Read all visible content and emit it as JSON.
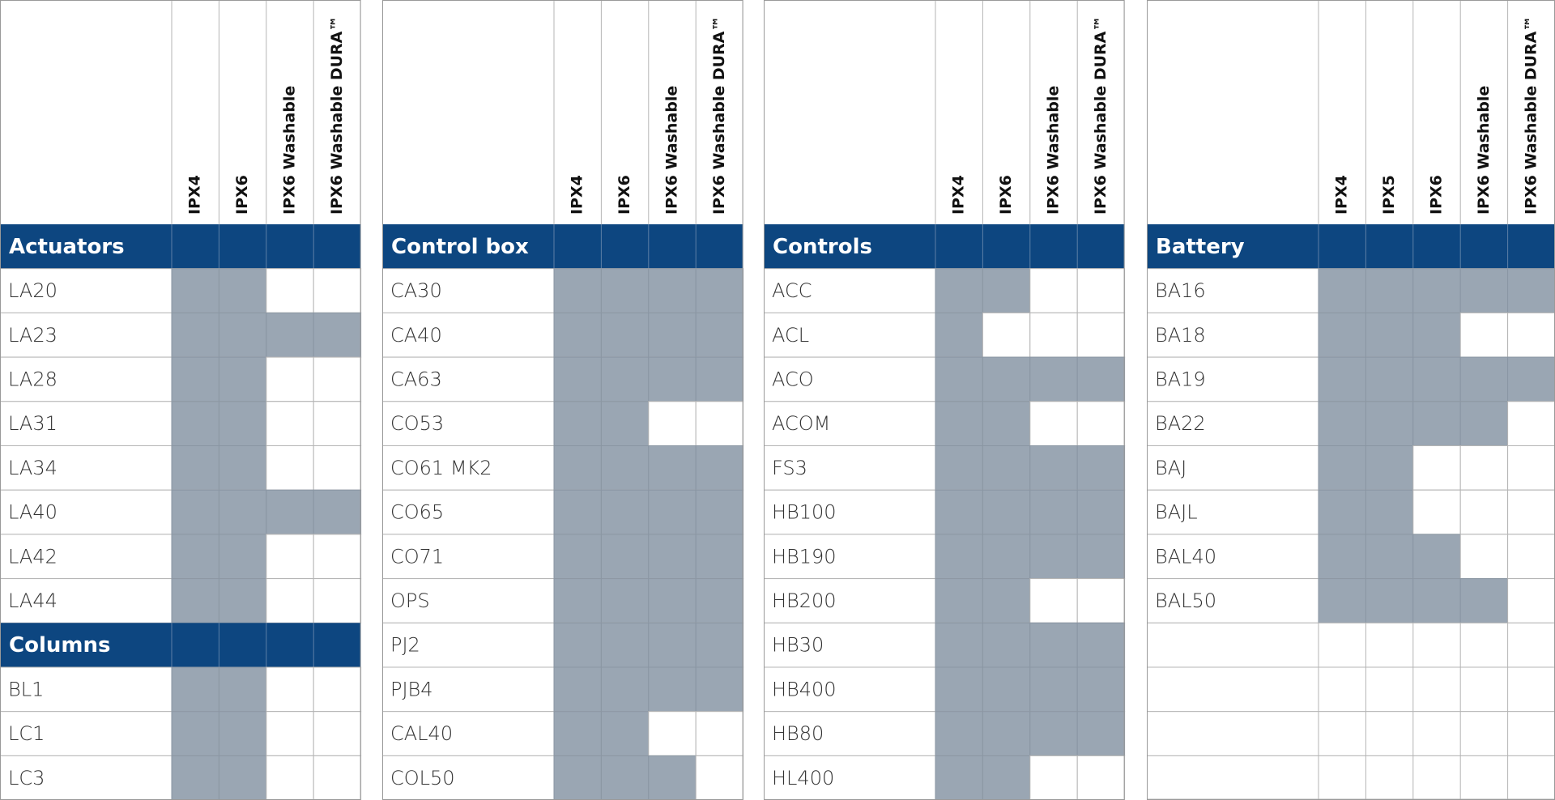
{
  "panels": [
    {
      "columns": [
        "IPX4",
        "IPX6",
        "IPX6 Washable",
        "IPX6 Washable DURA™"
      ],
      "sections": [
        {
          "title": "Actuators",
          "rows": [
            {
              "name": "LA20",
              "marks": [
                true,
                true,
                false,
                false
              ]
            },
            {
              "name": "LA23",
              "marks": [
                true,
                true,
                true,
                true
              ]
            },
            {
              "name": "LA28",
              "marks": [
                true,
                true,
                false,
                false
              ]
            },
            {
              "name": "LA31",
              "marks": [
                true,
                true,
                false,
                false
              ]
            },
            {
              "name": "LA34",
              "marks": [
                true,
                true,
                false,
                false
              ]
            },
            {
              "name": "LA40",
              "marks": [
                true,
                true,
                true,
                true
              ]
            },
            {
              "name": "LA42",
              "marks": [
                true,
                true,
                false,
                false
              ]
            },
            {
              "name": "LA44",
              "marks": [
                true,
                true,
                false,
                false
              ]
            }
          ]
        },
        {
          "title": "Columns",
          "rows": [
            {
              "name": "BL1",
              "marks": [
                true,
                true,
                false,
                false
              ]
            },
            {
              "name": "LC1",
              "marks": [
                true,
                true,
                false,
                false
              ]
            },
            {
              "name": "LC3",
              "marks": [
                true,
                true,
                false,
                false
              ]
            }
          ]
        }
      ]
    },
    {
      "columns": [
        "IPX4",
        "IPX6",
        "IPX6 Washable",
        "IPX6 Washable DURA™"
      ],
      "sections": [
        {
          "title": "Control box",
          "rows": [
            {
              "name": "CA30",
              "marks": [
                true,
                true,
                true,
                true
              ]
            },
            {
              "name": "CA40",
              "marks": [
                true,
                true,
                true,
                true
              ]
            },
            {
              "name": "CA63",
              "marks": [
                true,
                true,
                true,
                true
              ]
            },
            {
              "name": "CO53",
              "marks": [
                true,
                true,
                false,
                false
              ]
            },
            {
              "name": "CO61 MK2",
              "marks": [
                true,
                true,
                true,
                true
              ]
            },
            {
              "name": "CO65",
              "marks": [
                true,
                true,
                true,
                true
              ]
            },
            {
              "name": "CO71",
              "marks": [
                true,
                true,
                true,
                true
              ]
            },
            {
              "name": "OPS",
              "marks": [
                true,
                true,
                true,
                true
              ]
            },
            {
              "name": "PJ2",
              "marks": [
                true,
                true,
                true,
                true
              ]
            },
            {
              "name": "PJB4",
              "marks": [
                true,
                true,
                true,
                true
              ]
            },
            {
              "name": "CAL40",
              "marks": [
                true,
                true,
                false,
                false
              ]
            },
            {
              "name": "COL50",
              "marks": [
                true,
                true,
                true,
                false
              ]
            }
          ]
        }
      ]
    },
    {
      "columns": [
        "IPX4",
        "IPX6",
        "IPX6 Washable",
        "IPX6 Washable DURA™"
      ],
      "sections": [
        {
          "title": "Controls",
          "rows": [
            {
              "name": "ACC",
              "marks": [
                true,
                true,
                false,
                false
              ]
            },
            {
              "name": "ACL",
              "marks": [
                true,
                false,
                false,
                false
              ]
            },
            {
              "name": "ACO",
              "marks": [
                true,
                true,
                true,
                true
              ]
            },
            {
              "name": "ACOM",
              "marks": [
                true,
                true,
                false,
                false
              ]
            },
            {
              "name": "FS3",
              "marks": [
                true,
                true,
                true,
                true
              ]
            },
            {
              "name": "HB100",
              "marks": [
                true,
                true,
                true,
                true
              ]
            },
            {
              "name": "HB190",
              "marks": [
                true,
                true,
                true,
                true
              ]
            },
            {
              "name": "HB200",
              "marks": [
                true,
                true,
                false,
                false
              ]
            },
            {
              "name": "HB30",
              "marks": [
                true,
                true,
                true,
                true
              ]
            },
            {
              "name": "HB400",
              "marks": [
                true,
                true,
                true,
                true
              ]
            },
            {
              "name": "HB80",
              "marks": [
                true,
                true,
                true,
                true
              ]
            },
            {
              "name": "HL400",
              "marks": [
                true,
                true,
                false,
                false
              ]
            }
          ]
        }
      ]
    },
    {
      "columns": [
        "IPX4",
        "IPX5",
        "IPX6",
        "IPX6 Washable",
        "IPX6 Washable DURA™"
      ],
      "sections": [
        {
          "title": "Battery",
          "rows": [
            {
              "name": "BA16",
              "marks": [
                true,
                true,
                true,
                true,
                true
              ]
            },
            {
              "name": "BA18",
              "marks": [
                true,
                true,
                true,
                false,
                false
              ]
            },
            {
              "name": "BA19",
              "marks": [
                true,
                true,
                true,
                true,
                true
              ]
            },
            {
              "name": "BA22",
              "marks": [
                true,
                true,
                true,
                true,
                false
              ]
            },
            {
              "name": "BAJ",
              "marks": [
                true,
                true,
                false,
                false,
                false
              ]
            },
            {
              "name": "BAJL",
              "marks": [
                true,
                true,
                false,
                false,
                false
              ]
            },
            {
              "name": "BAL40",
              "marks": [
                true,
                true,
                true,
                false,
                false
              ]
            },
            {
              "name": "BAL50",
              "marks": [
                true,
                true,
                true,
                true,
                false
              ]
            }
          ]
        }
      ]
    }
  ]
}
